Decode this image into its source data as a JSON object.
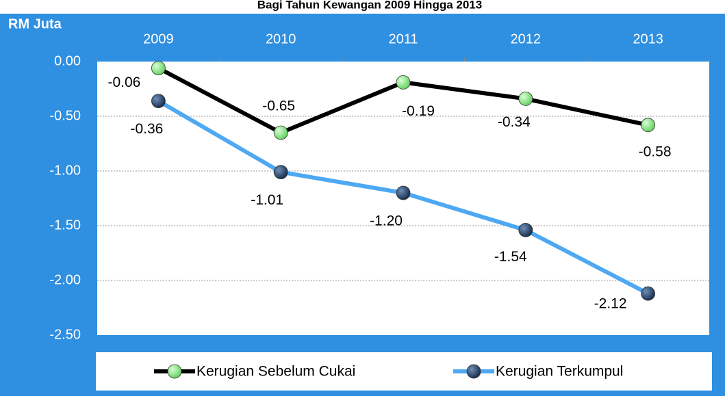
{
  "chart_data": {
    "type": "line",
    "title": "Bagi Tahun Kewangan 2009 Hingga 2013",
    "y_label": "RM Juta",
    "categories": [
      "2009",
      "2010",
      "2011",
      "2012",
      "2013"
    ],
    "series": [
      {
        "name": "Kerugian Sebelum Cukai",
        "color": "#000000",
        "marker_color": "#7ee07a",
        "values": [
          -0.06,
          -0.65,
          -0.19,
          -0.34,
          -0.58
        ],
        "value_labels": [
          "-0.06",
          "-0.65",
          "-0.19",
          "-0.34",
          "-0.58"
        ]
      },
      {
        "name": "Kerugian Terkumpul",
        "color": "#4ea8f2",
        "marker_color": "#1f3a60",
        "values": [
          -0.36,
          -1.01,
          -1.2,
          -1.54,
          -2.12
        ],
        "value_labels": [
          "-0.36",
          "-1.01",
          "-1.20",
          "-1.54",
          "-2.12"
        ]
      }
    ],
    "ylim": [
      -2.5,
      0
    ],
    "yticks": [
      {
        "value": 0,
        "label": "0.00"
      },
      {
        "value": -0.5,
        "label": "-0.50"
      },
      {
        "value": -1,
        "label": "-1.00"
      },
      {
        "value": -1.5,
        "label": "-1.50"
      },
      {
        "value": -2,
        "label": "-2.00"
      },
      {
        "value": -2.5,
        "label": "-2.50"
      }
    ],
    "grid": true,
    "legend": "bottom"
  }
}
